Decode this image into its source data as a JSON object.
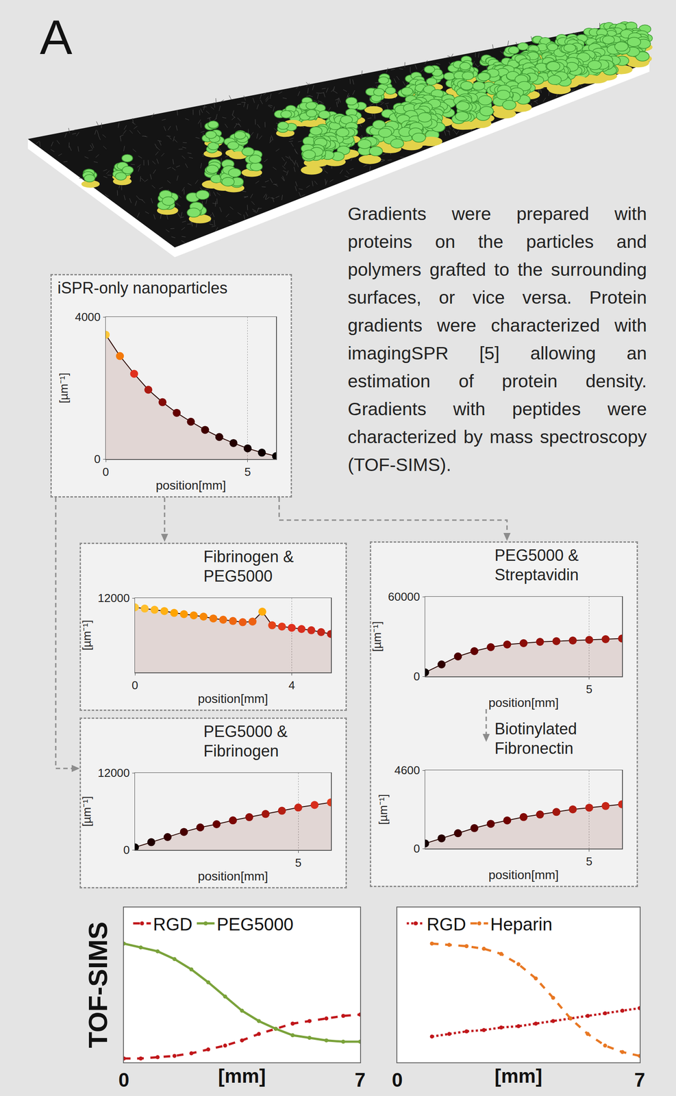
{
  "panel_label": "A",
  "description": "Gradients were prepared with proteins on the particles and polymers grafted to the surrounding surfaces, or vice versa. Protein gradients were characterized with imagingSPR [5] allowing an estimation of protein density. Gradients with peptides were characterized by mass spectroscopy (TOF-SIMS).",
  "tofsims_label": "TOF-SIMS",
  "chart_data": [
    {
      "type": "line",
      "title": "iSPR-only nanoparticles",
      "xlabel": "position[mm]",
      "ylabel": "[µm⁻¹]",
      "x": [
        0,
        0.5,
        1,
        1.5,
        2,
        2.5,
        3,
        3.5,
        4,
        4.5,
        5,
        5.5,
        6
      ],
      "values": [
        3500,
        2900,
        2400,
        1950,
        1600,
        1300,
        1050,
        820,
        620,
        450,
        300,
        180,
        80
      ],
      "xlim": [
        0,
        6
      ],
      "xticks": [
        0,
        5
      ],
      "ylim": [
        0,
        4000
      ],
      "yticks": [
        0,
        4000
      ],
      "grid": true,
      "marker": "circle",
      "line_style": "solid"
    },
    {
      "type": "line",
      "title": "Fibrinogen & PEG5000",
      "xlabel": "position[mm]",
      "ylabel": "[µm⁻¹]",
      "x": [
        0,
        0.25,
        0.5,
        0.75,
        1,
        1.25,
        1.5,
        1.75,
        2,
        2.25,
        2.5,
        2.75,
        3,
        3.25,
        3.5,
        3.75,
        4,
        4.25,
        4.5,
        4.75,
        5
      ],
      "values": [
        10500,
        10300,
        10100,
        9900,
        9600,
        9400,
        9200,
        9000,
        8700,
        8500,
        8300,
        8100,
        8200,
        9800,
        7600,
        7400,
        7200,
        7000,
        6800,
        6500,
        6200
      ],
      "xlim": [
        0,
        5
      ],
      "xticks": [
        0,
        4
      ],
      "ylim": [
        0,
        12000
      ],
      "yticks": [
        12000
      ],
      "grid": true,
      "marker": "circle",
      "line_style": "solid"
    },
    {
      "type": "line",
      "title": "PEG5000 & Fibrinogen",
      "xlabel": "position[mm]",
      "ylabel": "[µm⁻¹]",
      "x": [
        0,
        0.5,
        1,
        1.5,
        2,
        2.5,
        3,
        3.5,
        4,
        4.5,
        5,
        5.5,
        6
      ],
      "values": [
        400,
        1200,
        2000,
        2800,
        3500,
        4000,
        4600,
        5100,
        5600,
        6100,
        6600,
        7000,
        7400
      ],
      "xlim": [
        0,
        6
      ],
      "xticks": [
        5
      ],
      "ylim": [
        0,
        12000
      ],
      "yticks": [
        0,
        12000
      ],
      "grid": true,
      "marker": "circle",
      "line_style": "solid"
    },
    {
      "type": "line",
      "title": "PEG5000 & Streptavidin",
      "xlabel": "position[mm]",
      "ylabel": "[µm⁻¹]",
      "x": [
        0,
        0.5,
        1,
        1.5,
        2,
        2.5,
        3,
        3.5,
        4,
        4.5,
        5,
        5.5,
        6
      ],
      "values": [
        3000,
        9000,
        15000,
        19000,
        22000,
        24000,
        25000,
        26000,
        26500,
        27000,
        27500,
        28000,
        28500
      ],
      "xlim": [
        0,
        6
      ],
      "xticks": [
        5
      ],
      "ylim": [
        0,
        60000
      ],
      "yticks": [
        0,
        60000
      ],
      "grid": true,
      "marker": "circle",
      "line_style": "solid"
    },
    {
      "type": "line",
      "title": "Biotinylated Fibronectin",
      "xlabel": "position[mm]",
      "ylabel": "[µm⁻¹]",
      "x": [
        0,
        0.5,
        1,
        1.5,
        2,
        2.5,
        3,
        3.5,
        4,
        4.5,
        5,
        5.5,
        6
      ],
      "values": [
        300,
        600,
        900,
        1200,
        1450,
        1650,
        1850,
        2000,
        2150,
        2300,
        2400,
        2500,
        2600
      ],
      "xlim": [
        0,
        6
      ],
      "xticks": [
        5
      ],
      "ylim": [
        0,
        4600
      ],
      "yticks": [
        0,
        4600
      ],
      "grid": true,
      "marker": "circle",
      "line_style": "solid"
    },
    {
      "type": "line",
      "xlabel": "[mm]",
      "xlim": [
        0,
        7
      ],
      "xticks": [
        0,
        7
      ],
      "ylim": [
        0,
        1.2
      ],
      "yticks": [],
      "tick_labels": "x",
      "legend": "upper left",
      "grid": false,
      "series": [
        {
          "name": "RGD",
          "color": "#c0161a",
          "marker": "circle",
          "line_style": "dash",
          "x": [
            0,
            0.5,
            1,
            1.5,
            2,
            2.5,
            3,
            3.5,
            4,
            4.5,
            5,
            5.5,
            6,
            6.5,
            7
          ],
          "values": [
            0.03,
            0.03,
            0.04,
            0.05,
            0.07,
            0.1,
            0.13,
            0.17,
            0.22,
            0.26,
            0.3,
            0.32,
            0.34,
            0.36,
            0.37
          ]
        },
        {
          "name": "PEG5000",
          "color": "#7aa23a",
          "marker": "circle",
          "line_style": "solid",
          "x": [
            0,
            0.5,
            1,
            1.5,
            2,
            2.5,
            3,
            3.5,
            4,
            4.5,
            5,
            5.5,
            6,
            6.5,
            7
          ],
          "values": [
            0.92,
            0.89,
            0.86,
            0.8,
            0.72,
            0.62,
            0.51,
            0.4,
            0.32,
            0.26,
            0.21,
            0.19,
            0.17,
            0.16,
            0.16
          ]
        }
      ]
    },
    {
      "type": "line",
      "xlabel": "[mm]",
      "xlim": [
        0,
        7
      ],
      "xticks": [
        0,
        7
      ],
      "ylim": [
        0,
        1.2
      ],
      "yticks": [],
      "tick_labels": "x",
      "legend": "upper left",
      "grid": false,
      "series": [
        {
          "name": "RGD",
          "color": "#c0161a",
          "marker": "circle",
          "line_style": "dot",
          "x": [
            1,
            1.5,
            2,
            2.5,
            3,
            3.5,
            4,
            4.5,
            5,
            5.5,
            6,
            6.5,
            7
          ],
          "values": [
            0.2,
            0.22,
            0.24,
            0.25,
            0.27,
            0.28,
            0.3,
            0.32,
            0.34,
            0.36,
            0.38,
            0.4,
            0.42
          ]
        },
        {
          "name": "Heparin",
          "color": "#e87722",
          "marker": "circle",
          "line_style": "dash",
          "x": [
            1,
            1.5,
            2,
            2.5,
            3,
            3.5,
            4,
            4.5,
            5,
            5.5,
            6,
            6.5,
            7
          ],
          "values": [
            0.92,
            0.91,
            0.9,
            0.88,
            0.84,
            0.76,
            0.65,
            0.5,
            0.34,
            0.22,
            0.13,
            0.08,
            0.05
          ]
        }
      ]
    }
  ]
}
